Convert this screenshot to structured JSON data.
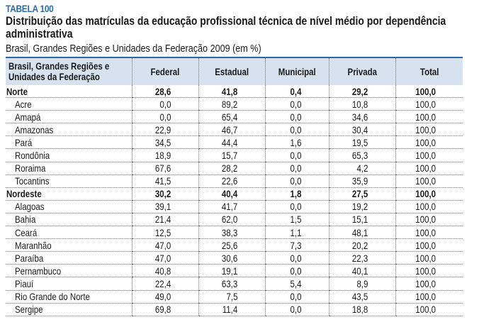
{
  "table_label": "TABELA 100",
  "title": "Distribuição das matrículas da educação profissional técnica de nível médio por dependência administrativa",
  "subtitle": "Brasil, Grandes Regiões e Unidades da Federação 2009 (em %)",
  "accent_color": "#2a6aa8",
  "header_bg": "#d8e2ee",
  "columns": [
    "Brasil, Grandes Regiões e Unidades da Federação",
    "Federal",
    "Estadual",
    "Municipal",
    "Privada",
    "Total"
  ],
  "rows": [
    {
      "name": "Norte",
      "type": "region",
      "values": [
        "28,6",
        "41,8",
        "0,4",
        "29,2",
        "100,0"
      ]
    },
    {
      "name": "Acre",
      "type": "state",
      "values": [
        "0,0",
        "89,2",
        "0,0",
        "10,8",
        "100,0"
      ]
    },
    {
      "name": "Amapá",
      "type": "state",
      "values": [
        "0,0",
        "65,4",
        "0,0",
        "34,6",
        "100,0"
      ]
    },
    {
      "name": "Amazonas",
      "type": "state",
      "values": [
        "22,9",
        "46,7",
        "0,0",
        "30,4",
        "100,0"
      ]
    },
    {
      "name": "Pará",
      "type": "state",
      "values": [
        "34,5",
        "44,4",
        "1,6",
        "19,5",
        "100,0"
      ]
    },
    {
      "name": "Rondônia",
      "type": "state",
      "values": [
        "18,9",
        "15,7",
        "0,0",
        "65,3",
        "100,0"
      ]
    },
    {
      "name": "Roraima",
      "type": "state",
      "values": [
        "67,6",
        "28,2",
        "0,0",
        "4,2",
        "100,0"
      ]
    },
    {
      "name": "Tocantins",
      "type": "state",
      "values": [
        "41,5",
        "22,6",
        "0,0",
        "35,9",
        "100,0"
      ]
    },
    {
      "name": "Nordeste",
      "type": "region",
      "values": [
        "30,2",
        "40,4",
        "1,8",
        "27,5",
        "100,0"
      ]
    },
    {
      "name": "Alagoas",
      "type": "state",
      "values": [
        "39,1",
        "41,7",
        "0,0",
        "19,2",
        "100,0"
      ]
    },
    {
      "name": "Bahia",
      "type": "state",
      "values": [
        "21,4",
        "62,0",
        "1,5",
        "15,1",
        "100,0"
      ]
    },
    {
      "name": "Ceará",
      "type": "state",
      "values": [
        "12,5",
        "38,3",
        "1,1",
        "48,1",
        "100,0"
      ]
    },
    {
      "name": "Maranhão",
      "type": "state",
      "values": [
        "47,0",
        "25,6",
        "7,3",
        "20,2",
        "100,0"
      ]
    },
    {
      "name": "Paraíba",
      "type": "state",
      "values": [
        "47,0",
        "30,6",
        "0,0",
        "22,3",
        "100,0"
      ]
    },
    {
      "name": "Pernambuco",
      "type": "state",
      "values": [
        "40,8",
        "19,1",
        "0,0",
        "40,1",
        "100,0"
      ]
    },
    {
      "name": "Piauí",
      "type": "state",
      "values": [
        "22,4",
        "63,3",
        "5,4",
        "8,9",
        "100,0"
      ]
    },
    {
      "name": "Rio Grande do Norte",
      "type": "state",
      "values": [
        "49,0",
        "7,5",
        "0,0",
        "43,5",
        "100,0"
      ]
    },
    {
      "name": "Sergipe",
      "type": "state",
      "values": [
        "69,8",
        "11,4",
        "0,0",
        "18,8",
        "100,0"
      ]
    }
  ]
}
